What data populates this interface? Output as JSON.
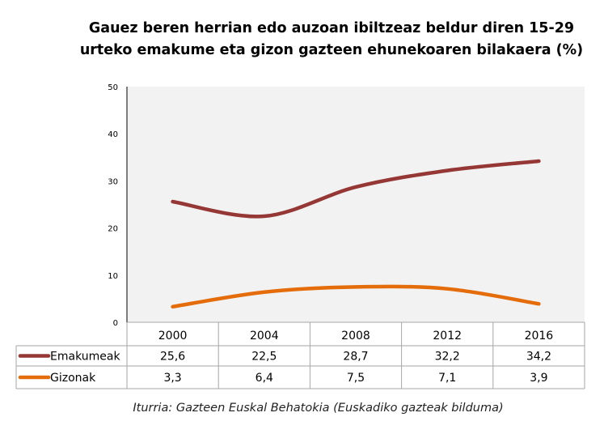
{
  "chart_data": {
    "type": "line",
    "title": "Gauez beren  herrian edo auzoan ibiltzeaz beldur diren 15-29 urteko emakume eta gizon gazteen ehunekoaren bilakaera (%)",
    "categories": [
      "2000",
      "2004",
      "2008",
      "2012",
      "2016"
    ],
    "series": [
      {
        "name": "Emakumeak",
        "values": [
          25.6,
          22.5,
          28.7,
          32.2,
          34.2
        ],
        "labels": [
          "25,6",
          "22,5",
          "28,7",
          "32,2",
          "34,2"
        ],
        "color": "#953735"
      },
      {
        "name": "Gizonak",
        "values": [
          3.3,
          6.4,
          7.5,
          7.1,
          3.9
        ],
        "labels": [
          "3,3",
          "6,4",
          "7,5",
          "7,1",
          "3,9"
        ],
        "color": "#E46C0A"
      }
    ],
    "ylim": [
      0,
      50
    ],
    "yticks": [
      0,
      10,
      20,
      30,
      40,
      50
    ],
    "grid": false,
    "smooth": true,
    "plot_background": "#F2F2F2",
    "legend_placement": "data-table",
    "source": "Iturria: Gazteen Euskal Behatokia (Euskadiko gazteak bilduma)"
  }
}
